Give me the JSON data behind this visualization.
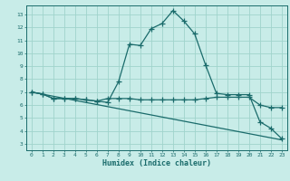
{
  "xlabel": "Humidex (Indice chaleur)",
  "bg_color": "#c8ece8",
  "grid_color": "#a0d4cc",
  "line_color": "#1a6b6b",
  "xlim": [
    -0.5,
    23.5
  ],
  "ylim": [
    2.5,
    13.7
  ],
  "xticks": [
    0,
    1,
    2,
    3,
    4,
    5,
    6,
    7,
    8,
    9,
    10,
    11,
    12,
    13,
    14,
    15,
    16,
    17,
    18,
    19,
    20,
    21,
    22,
    23
  ],
  "yticks": [
    3,
    4,
    5,
    6,
    7,
    8,
    9,
    10,
    11,
    12,
    13
  ],
  "line1_x": [
    0,
    1,
    2,
    3,
    4,
    5,
    6,
    7,
    8,
    9,
    10,
    11,
    12,
    13,
    14,
    15,
    16,
    17,
    18,
    19,
    20,
    21,
    22,
    23
  ],
  "line1_y": [
    7.0,
    6.85,
    6.5,
    6.5,
    6.5,
    6.4,
    6.3,
    6.2,
    7.8,
    10.7,
    10.6,
    11.9,
    12.3,
    13.3,
    12.5,
    11.5,
    9.1,
    6.9,
    6.8,
    6.8,
    6.8,
    4.7,
    4.2,
    3.4
  ],
  "line2_x": [
    0,
    1,
    2,
    3,
    4,
    5,
    6,
    7,
    8,
    9,
    10,
    11,
    12,
    13,
    14,
    15,
    16,
    17,
    18,
    19,
    20,
    21,
    22,
    23
  ],
  "line2_y": [
    7.0,
    6.85,
    6.5,
    6.5,
    6.5,
    6.4,
    6.3,
    6.5,
    6.5,
    6.5,
    6.4,
    6.4,
    6.4,
    6.4,
    6.4,
    6.4,
    6.5,
    6.6,
    6.6,
    6.6,
    6.6,
    6.0,
    5.8,
    5.8
  ],
  "line3_x": [
    0,
    23
  ],
  "line3_y": [
    7.0,
    3.3
  ]
}
